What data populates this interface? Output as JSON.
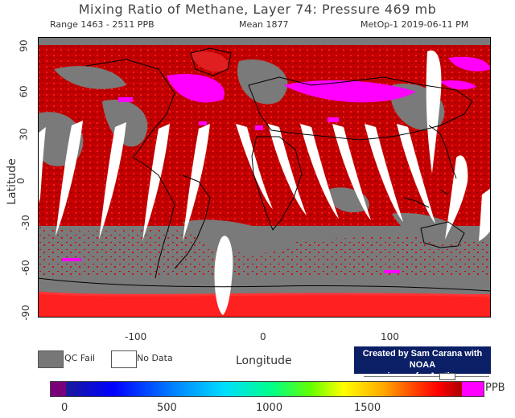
{
  "header": {
    "title": "Mixing Ratio of Methane, Layer 74: Pressure 469 mb",
    "range": "Range 1463 - 2511 PPB",
    "mean": "Mean 1877",
    "satellite": "MetOp-1 2019-06-11 PM"
  },
  "axes": {
    "ylabel": "Latitude",
    "xlabel": "Longitude",
    "lat_ticks": [
      "90",
      "60",
      "30",
      "0",
      "-30",
      "-60",
      "-90"
    ],
    "lon_ticks": [
      "-100",
      "0",
      "100"
    ]
  },
  "legend": {
    "qc_fail": "QC Fail",
    "no_data": "No Data"
  },
  "credit": {
    "line1": "Created by Sam Carana with NOAA",
    "line2": "image for Arctic-news.blogspot.com"
  },
  "colorbar": {
    "unit": "PPB",
    "ticks": [
      "0",
      "500",
      "1000",
      "1500"
    ],
    "colors": [
      "#7a007a",
      "#1a1a9a",
      "#0000ff",
      "#0088ff",
      "#00ddff",
      "#00ff88",
      "#66ff00",
      "#ffff00",
      "#ffaa00",
      "#ff4400",
      "#ff0000",
      "#aa0000",
      "#ff00ff"
    ]
  },
  "map_colors": {
    "qc_fail": "#777777",
    "no_data": "#ffffff",
    "high": "#ff00ff",
    "main": "#c00000",
    "bright": "#ff1a1a"
  }
}
